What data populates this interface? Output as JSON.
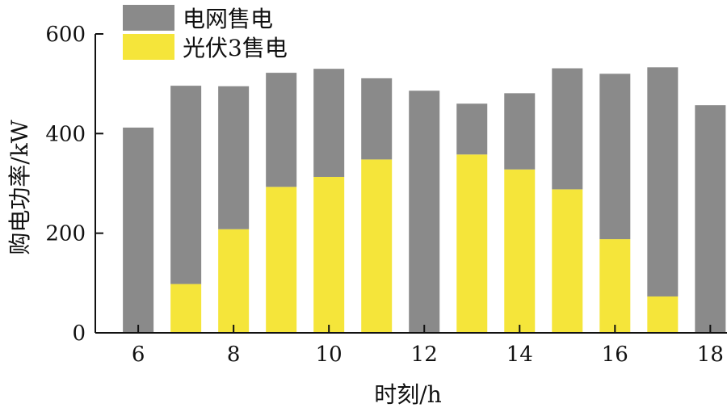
{
  "chart_data": {
    "type": "bar",
    "stacked": true,
    "xlabel": "时刻/h",
    "ylabel": "购电功率/kW",
    "ylim": [
      0,
      600
    ],
    "yticks": [
      0,
      200,
      400,
      600
    ],
    "xticks": [
      6,
      8,
      10,
      12,
      14,
      16,
      18
    ],
    "x": [
      6,
      7,
      8,
      9,
      10,
      11,
      12,
      13,
      14,
      15,
      16,
      17,
      18
    ],
    "series": [
      {
        "name": "光伏3售电",
        "color": "#f5e53a",
        "values": [
          0,
          98,
          208,
          293,
          313,
          348,
          0,
          358,
          328,
          288,
          188,
          73,
          0
        ]
      },
      {
        "name": "电网售电",
        "color": "#8a8a8a",
        "values": [
          412,
          398,
          287,
          229,
          217,
          163,
          486,
          102,
          153,
          243,
          332,
          460,
          457
        ]
      }
    ],
    "legend": {
      "position": "top-left",
      "order": [
        "电网售电",
        "光伏3售电"
      ]
    },
    "grid": false
  }
}
